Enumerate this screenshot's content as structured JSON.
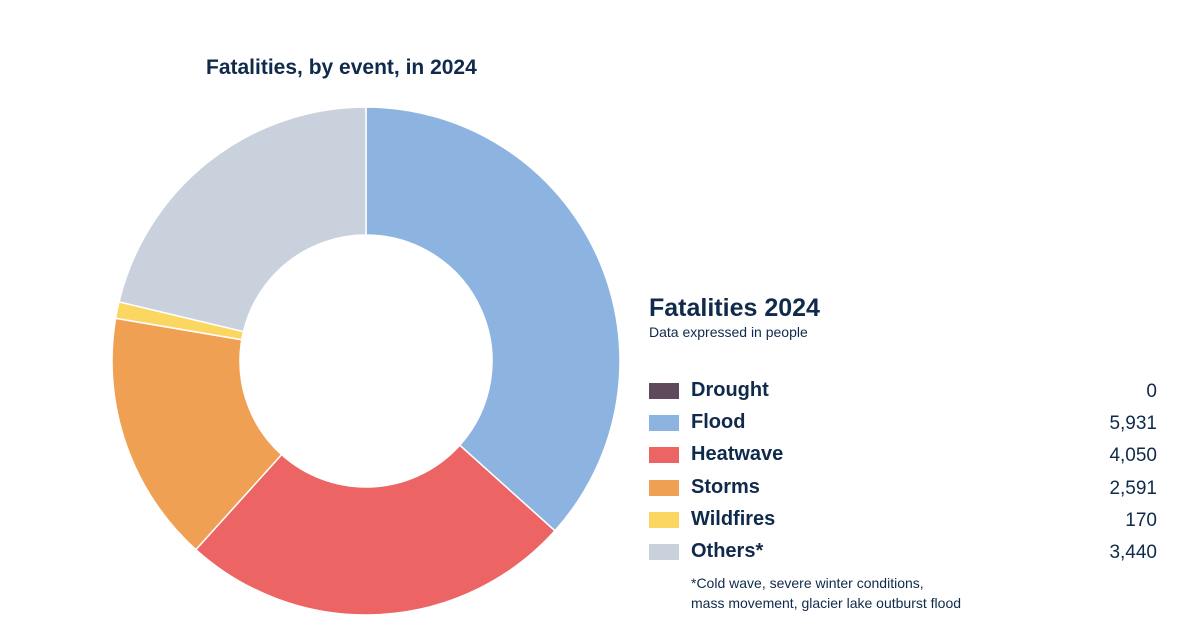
{
  "chart_data": {
    "type": "pie",
    "title": "Fatalities, by event, in 2024",
    "legend_title": "Fatalities 2024",
    "legend_subtitle": "Data expressed in people",
    "legend_placement": "right",
    "categories": [
      "Drought",
      "Flood",
      "Heatwave",
      "Storms",
      "Wildfires",
      "Others*"
    ],
    "values": [
      0,
      5931,
      4050,
      2591,
      170,
      3440
    ],
    "value_labels": [
      "0",
      "5,931",
      "4,050",
      "2,591",
      "170",
      "3,440"
    ],
    "colors": [
      "#5e4a5a",
      "#8db4e0",
      "#ec6464",
      "#f0a052",
      "#fbd660",
      "#c8d1dc"
    ],
    "donut": true,
    "footnote_lines": [
      "*Cold wave, severe winter conditions,",
      "mass movement, glacier lake outburst flood"
    ]
  }
}
